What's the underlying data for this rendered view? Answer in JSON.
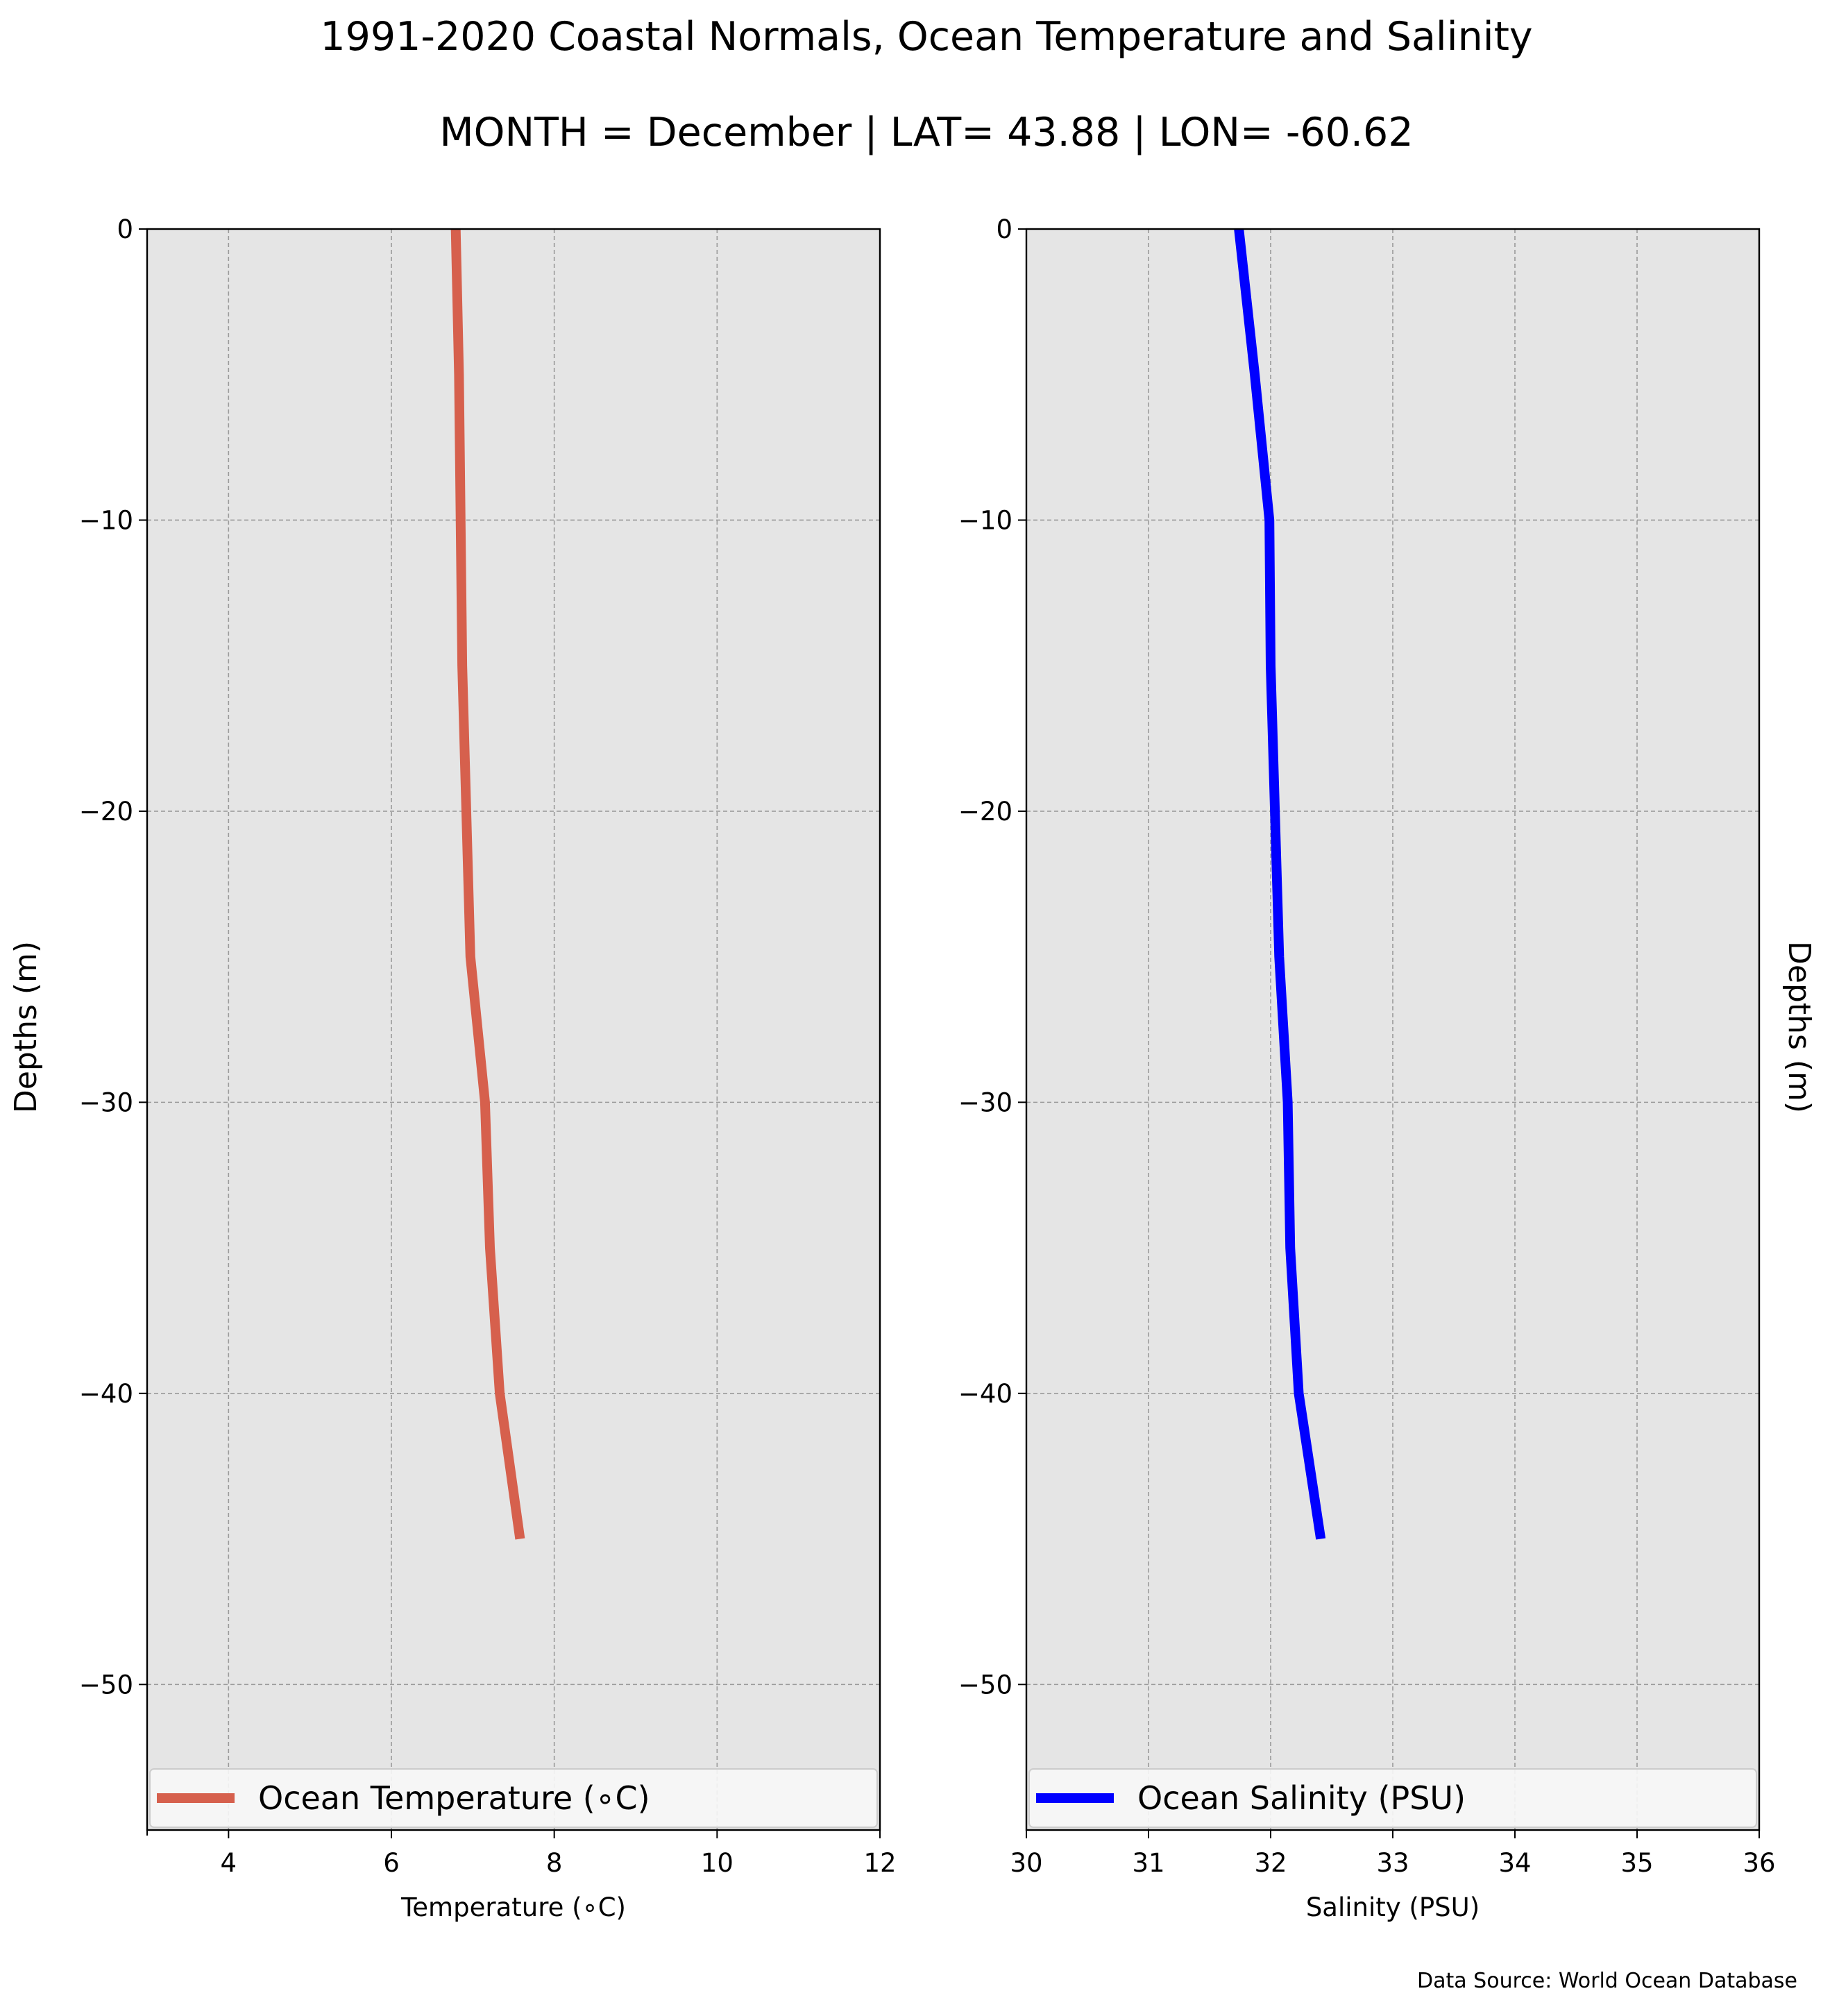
{
  "figure": {
    "title_line1": "1991-2020 Coastal Normals, Ocean Temperature and Salinity",
    "title_line2": "MONTH = December | LAT= 43.88 | LON= -60.62",
    "source_note": "Data Source: World Ocean Database",
    "ylabel_left": "Depths (m)",
    "ylabel_right": "Depths (m)"
  },
  "colors": {
    "panel_background": "#e5e5e5",
    "grid": "#9a9a9a",
    "temperature_line": "#d6604d",
    "salinity_line": "#0000ff"
  },
  "chart_data": [
    {
      "type": "line",
      "title": "",
      "xlabel": "Temperature (∘C)",
      "ylabel": "Depths (m)",
      "xlim": [
        3,
        12
      ],
      "ylim": [
        -55,
        0
      ],
      "xticks": [
        4,
        6,
        8,
        10,
        12
      ],
      "xtick_labels": [
        "4",
        "6",
        "8",
        "10",
        "12"
      ],
      "yticks": [
        0,
        -10,
        -20,
        -30,
        -40,
        -50
      ],
      "ytick_labels": [
        "0",
        "−10",
        "−20",
        "−30",
        "−40",
        "−50"
      ],
      "grid": true,
      "legend_position": "lower-center",
      "series": [
        {
          "name": "Ocean Temperature (∘C)",
          "color": "#d6604d",
          "x": [
            6.79,
            6.83,
            6.87,
            6.97,
            7.15,
            7.21,
            7.33,
            7.58
          ],
          "y": [
            0,
            -5,
            -15,
            -25,
            -30,
            -35,
            -40,
            -45
          ]
        }
      ]
    },
    {
      "type": "line",
      "title": "",
      "xlabel": "Salinity (PSU)",
      "ylabel": "Depths (m)",
      "xlim": [
        30,
        36
      ],
      "ylim": [
        -55,
        0
      ],
      "xticks": [
        30,
        31,
        32,
        33,
        34,
        35,
        36
      ],
      "xtick_labels": [
        "30",
        "31",
        "32",
        "33",
        "34",
        "35",
        "36"
      ],
      "yticks": [
        0,
        -10,
        -20,
        -30,
        -40,
        -50
      ],
      "ytick_labels": [
        "0",
        "−10",
        "−20",
        "−30",
        "−40",
        "−50"
      ],
      "grid": true,
      "legend_position": "lower-center",
      "series": [
        {
          "name": "Ocean Salinity (PSU)",
          "color": "#0000ff",
          "x": [
            31.74,
            31.87,
            31.99,
            32.0,
            32.07,
            32.14,
            32.16,
            32.23,
            32.41
          ],
          "y": [
            0,
            -5,
            -10,
            -15,
            -25,
            -30,
            -35,
            -40,
            -45
          ]
        }
      ]
    }
  ]
}
